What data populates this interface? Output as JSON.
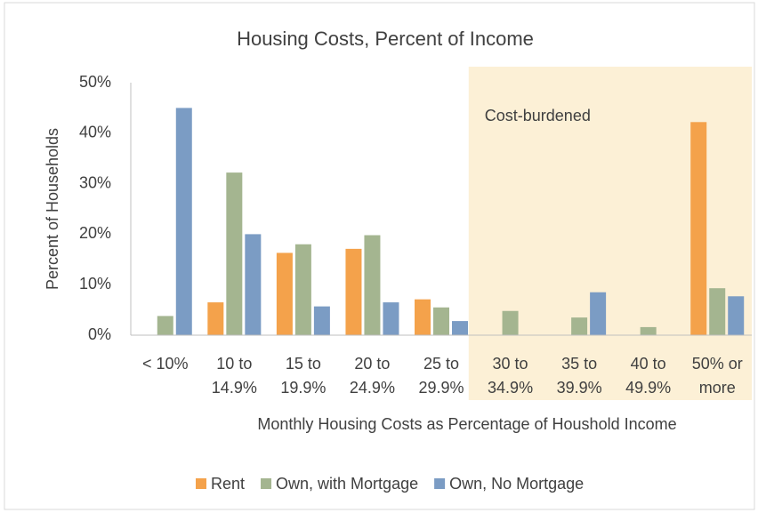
{
  "chart_data": {
    "type": "bar",
    "title": "Housing Costs, Percent of Income",
    "x_label": "Monthly Housing Costs as Percentage of Houshold  Income",
    "y_label": "Percent of Households",
    "categories": [
      [
        "< 10%"
      ],
      [
        "10 to",
        "14.9%"
      ],
      [
        "15 to",
        "19.9%"
      ],
      [
        "20 to",
        "24.9%"
      ],
      [
        "25 to",
        "29.9%"
      ],
      [
        "30 to",
        "34.9%"
      ],
      [
        "35 to",
        "39.9%"
      ],
      [
        "40 to",
        "49.9%"
      ],
      [
        "50% or",
        "more"
      ]
    ],
    "series": [
      {
        "name": "Rent",
        "color": "#f4a24b",
        "values": [
          null,
          6.5,
          16.3,
          17.1,
          7.1,
          null,
          null,
          null,
          42.2
        ]
      },
      {
        "name": "Own, with Mortgage",
        "color": "#a4b590",
        "values": [
          3.8,
          32.2,
          18,
          19.8,
          5.5,
          4.8,
          3.5,
          1.6,
          9.3
        ]
      },
      {
        "name": "Own, No Mortgage",
        "color": "#7b9cc4",
        "values": [
          45,
          20,
          5.7,
          6.5,
          2.8,
          null,
          8.5,
          null,
          7.7
        ]
      }
    ],
    "ylim": [
      0,
      50
    ],
    "yticks": [
      {
        "value": 0,
        "label": "0%"
      },
      {
        "value": 10,
        "label": "10%"
      },
      {
        "value": 20,
        "label": "20%"
      },
      {
        "value": 30,
        "label": "30%"
      },
      {
        "value": 40,
        "label": "40%"
      },
      {
        "value": 50,
        "label": "50%"
      }
    ],
    "highlight": {
      "label": "Cost-burdened",
      "from": 5,
      "to": 8,
      "color": "#fcf0d6"
    },
    "legend": "bottom"
  }
}
